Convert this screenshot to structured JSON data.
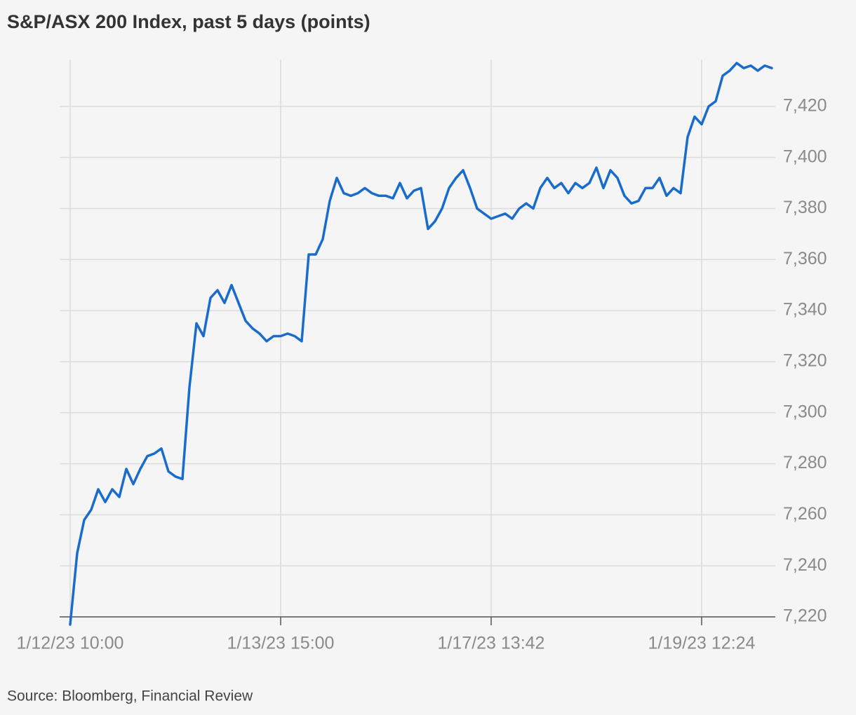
{
  "chart_data": {
    "type": "line",
    "title": "S&P/ASX 200 Index, past 5 days (points)",
    "source": "Source: Bloomberg, Financial Review",
    "categories": [
      "1/12/23 10:00",
      null,
      null,
      null,
      null,
      null,
      null,
      null,
      null,
      null,
      null,
      null,
      null,
      null,
      null,
      null,
      null,
      null,
      null,
      null,
      null,
      null,
      null,
      null,
      null,
      null,
      null,
      null,
      null,
      null,
      "1/13/23 15:00",
      null,
      null,
      null,
      null,
      null,
      null,
      null,
      null,
      null,
      null,
      null,
      null,
      null,
      null,
      null,
      null,
      null,
      null,
      null,
      null,
      null,
      null,
      null,
      null,
      null,
      null,
      null,
      null,
      null,
      "1/17/23 13:42",
      null,
      null,
      null,
      null,
      null,
      null,
      null,
      null,
      null,
      null,
      null,
      null,
      null,
      null,
      null,
      null,
      null,
      null,
      null,
      null,
      null,
      null,
      null,
      null,
      null,
      null,
      null,
      null,
      null,
      "1/19/23 12:24",
      null,
      null,
      null,
      null,
      null,
      null,
      null,
      null,
      null,
      null
    ],
    "values": [
      7217,
      7245,
      7258,
      7262,
      7270,
      7265,
      7270,
      7267,
      7278,
      7272,
      7278,
      7283,
      7284,
      7286,
      7277,
      7275,
      7274,
      7310,
      7335,
      7330,
      7345,
      7348,
      7343,
      7350,
      7343,
      7336,
      7333,
      7331,
      7328,
      7330,
      7330,
      7331,
      7330,
      7328,
      7362,
      7362,
      7368,
      7383,
      7392,
      7386,
      7385,
      7386,
      7388,
      7386,
      7385,
      7385,
      7384,
      7390,
      7384,
      7387,
      7388,
      7372,
      7375,
      7380,
      7388,
      7392,
      7395,
      7388,
      7380,
      7378,
      7376,
      7377,
      7378,
      7376,
      7380,
      7382,
      7380,
      7388,
      7392,
      7388,
      7390,
      7386,
      7390,
      7388,
      7390,
      7396,
      7388,
      7395,
      7392,
      7385,
      7382,
      7383,
      7388,
      7388,
      7392,
      7385,
      7388,
      7386,
      7408,
      7416,
      7413,
      7420,
      7422,
      7432,
      7434,
      7437,
      7435,
      7436,
      7434,
      7436,
      7435
    ],
    "color": "#1a6ccc",
    "ylim": [
      7217,
      7440
    ],
    "yticks": [
      {
        "value": 7220,
        "label": "7,220"
      },
      {
        "value": 7240,
        "label": "7,240"
      },
      {
        "value": 7260,
        "label": "7,260"
      },
      {
        "value": 7280,
        "label": "7,280"
      },
      {
        "value": 7300,
        "label": "7,300"
      },
      {
        "value": 7320,
        "label": "7,320"
      },
      {
        "value": 7340,
        "label": "7,340"
      },
      {
        "value": 7360,
        "label": "7,360"
      },
      {
        "value": 7380,
        "label": "7,380"
      },
      {
        "value": 7400,
        "label": "7,400"
      },
      {
        "value": 7420,
        "label": "7,420"
      }
    ],
    "grid": true
  }
}
